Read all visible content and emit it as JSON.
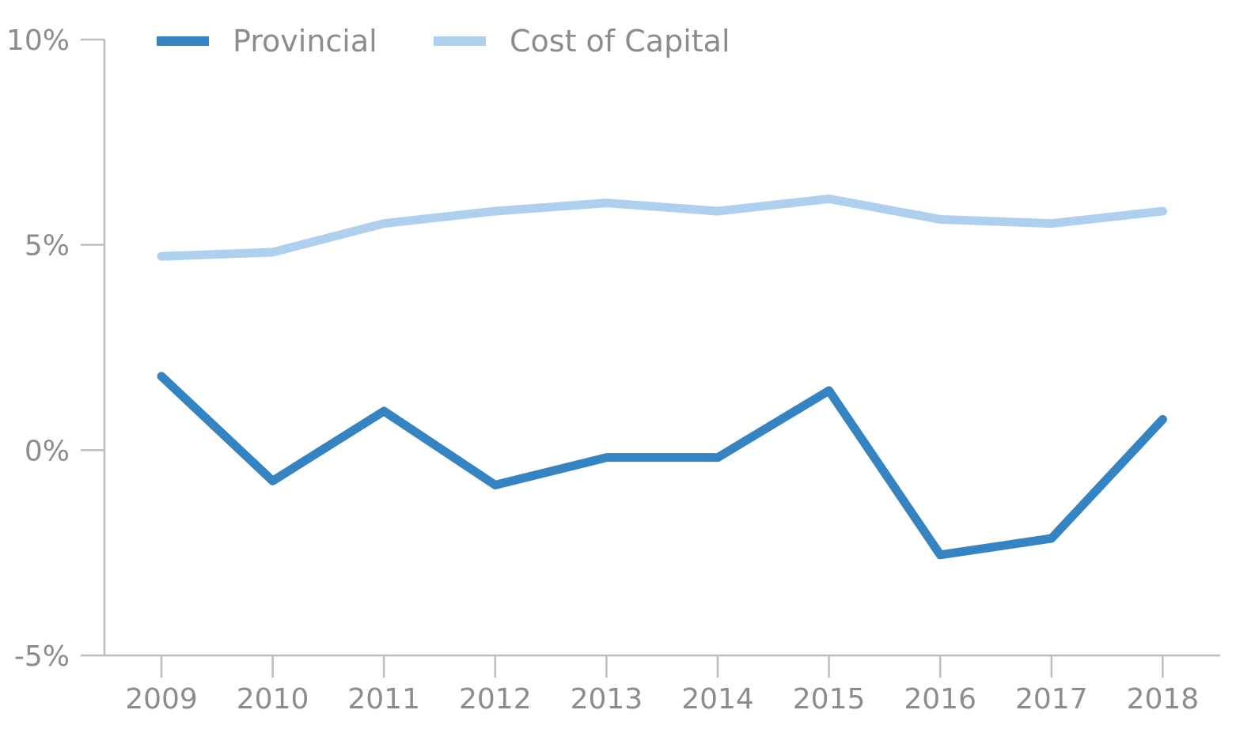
{
  "chart_data": {
    "type": "line",
    "categories": [
      "2009",
      "2010",
      "2011",
      "2012",
      "2013",
      "2014",
      "2015",
      "2016",
      "2017",
      "2018"
    ],
    "series": [
      {
        "name": "Provincial",
        "color": "#3583c0",
        "values": [
          1.8,
          -0.75,
          0.95,
          -0.85,
          -0.18,
          -0.18,
          1.45,
          -2.55,
          -2.15,
          0.75
        ]
      },
      {
        "name": "Cost of Capital",
        "color": "#aed0ee",
        "values": [
          4.72,
          4.82,
          5.52,
          5.82,
          6.02,
          5.82,
          6.12,
          5.62,
          5.52,
          5.82
        ]
      }
    ],
    "ylim": [
      -5,
      10
    ],
    "yticks": [
      -5,
      0,
      5,
      10
    ],
    "ytick_labels": [
      "-5%",
      "0%",
      "5%",
      "10%"
    ],
    "legend_position": "top-left",
    "grid": false
  }
}
